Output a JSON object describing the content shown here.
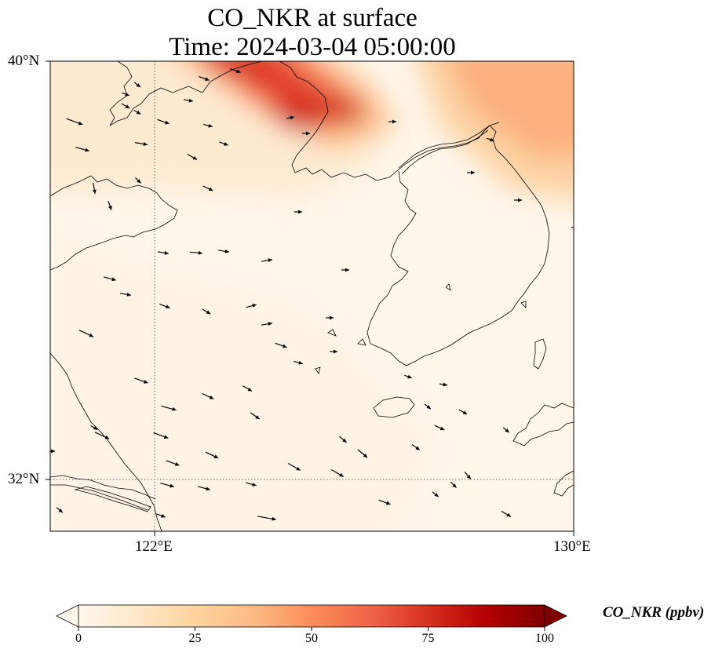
{
  "title": {
    "line1": "CO_NKR at surface",
    "line2": "Time: 2024-03-04 05:00:00"
  },
  "axes": {
    "lat_ticks": [
      {
        "label": "40°N",
        "value": 40
      },
      {
        "label": "32°N",
        "value": 32
      }
    ],
    "lon_ticks": [
      {
        "label": "122°E",
        "value": 122
      },
      {
        "label": "130°E",
        "value": 130
      }
    ]
  },
  "colorbar": {
    "label": "CO_NKR (ppbv)",
    "ticks": [
      {
        "label": "0",
        "value": 0
      },
      {
        "label": "25",
        "value": 25
      },
      {
        "label": "50",
        "value": 50
      },
      {
        "label": "75",
        "value": 75
      },
      {
        "label": "100",
        "value": 100
      }
    ],
    "colormap": "OrRd",
    "colors": [
      "#fff7ec",
      "#fee8c8",
      "#fdd49e",
      "#fdbb84",
      "#fc8d59",
      "#ef6548",
      "#d7301f",
      "#b30000",
      "#7f0000"
    ],
    "vmin": 0,
    "vmax": 100,
    "extend": "both"
  },
  "map": {
    "gridlines": "dotted",
    "wind_vectors": true,
    "coastlines": true
  }
}
